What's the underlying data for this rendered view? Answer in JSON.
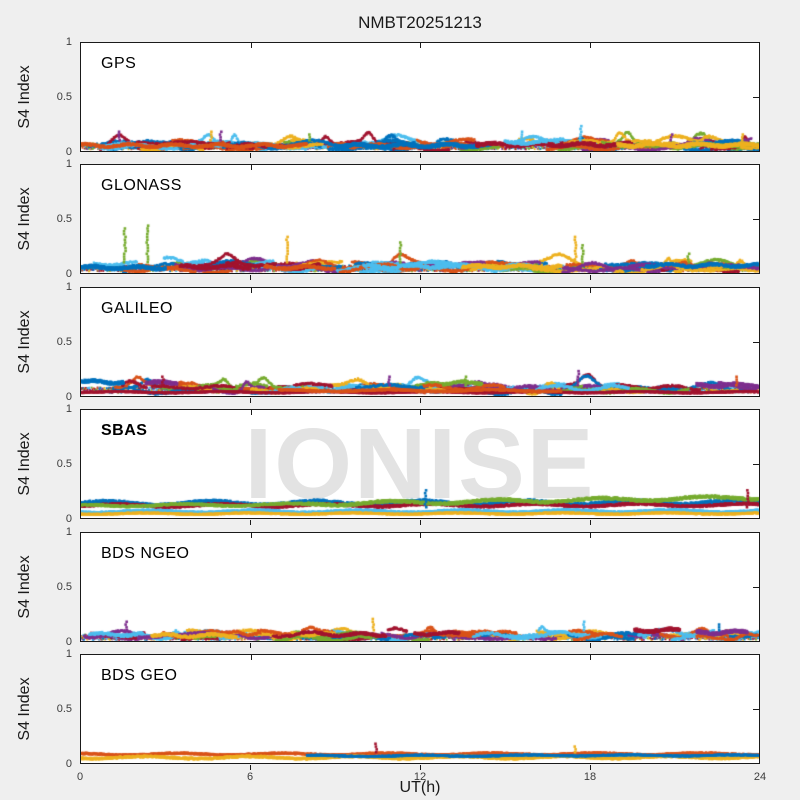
{
  "figure": {
    "bg": "#efefef",
    "panel_bg": "#ffffff",
    "axis_color": "#1a1a1a",
    "tick_label_color": "#3c3c3c",
    "text_color": "#1a1a1a"
  },
  "watermark": {
    "text": "IONISE",
    "color": "#e3e3e3"
  },
  "chart_data": {
    "type": "scatter",
    "title": "NMBT20251213",
    "xlabel": "UT(h)",
    "ylabel": "S4 Index",
    "xlim": [
      0,
      24
    ],
    "ylim": [
      0,
      1
    ],
    "xticks": [
      "0",
      "6",
      "12",
      "18",
      "24"
    ],
    "xtick_values": [
      0,
      6,
      12,
      18,
      24
    ],
    "yticks": [
      "1",
      "0.5",
      "0"
    ],
    "ytick_values": [
      1,
      0.5,
      0
    ],
    "grid": false,
    "legend": "none",
    "palette": [
      "#0072BD",
      "#D95319",
      "#EDB120",
      "#7E2F8E",
      "#77AC30",
      "#4DBEEE",
      "#A2142F"
    ],
    "panels": [
      {
        "id": "gps",
        "label": "GPS",
        "bold": false,
        "style": "arcs",
        "seed": 11,
        "n_arcs": 85,
        "arc_base": [
          0.02,
          0.09
        ],
        "arc_bump": 0.1,
        "baseline": {
          "range": [
            0.015,
            0.07
          ],
          "density": 2
        },
        "bands": [
          [
            9,
            14.5,
            0.05,
            0,
            3
          ],
          [
            14,
            19.5,
            0.06,
            6,
            3
          ],
          [
            19,
            24,
            0.055,
            2,
            3
          ],
          [
            0,
            8,
            0.05,
            1,
            2.5
          ],
          [
            15,
            16.5,
            0.08,
            5,
            2.5
          ]
        ],
        "lines": [],
        "spikes": [
          [
            1.35,
            0.18,
            3
          ],
          [
            4.6,
            0.2,
            2
          ],
          [
            4.95,
            0.19,
            3
          ],
          [
            8.1,
            0.16,
            4
          ],
          [
            15.6,
            0.19,
            5
          ],
          [
            17.7,
            0.25,
            5
          ],
          [
            20.9,
            0.17,
            3
          ],
          [
            23.4,
            0.16,
            2
          ]
        ],
        "watermark": false
      },
      {
        "id": "glonass",
        "label": "GLONASS",
        "bold": false,
        "style": "arcs",
        "seed": 22,
        "n_arcs": 75,
        "arc_base": [
          0.02,
          0.09
        ],
        "arc_bump": 0.09,
        "baseline": {
          "range": [
            0.015,
            0.07
          ],
          "density": 2
        },
        "bands": [
          [
            0,
            3,
            0.05,
            0,
            3
          ],
          [
            3.5,
            6,
            0.055,
            6,
            2.5
          ],
          [
            6.5,
            9,
            0.05,
            1,
            2.5
          ],
          [
            10,
            13,
            0.06,
            5,
            2.5
          ],
          [
            13.5,
            17,
            0.06,
            2,
            2.5
          ],
          [
            20,
            24,
            0.07,
            0,
            2.5
          ]
        ],
        "lines": [],
        "spikes": [
          [
            1.55,
            0.42,
            4
          ],
          [
            2.35,
            0.46,
            4
          ],
          [
            7.3,
            0.36,
            2
          ],
          [
            11.3,
            0.3,
            4
          ],
          [
            17.5,
            0.34,
            2
          ],
          [
            17.75,
            0.27,
            4
          ],
          [
            21.5,
            0.2,
            4
          ]
        ],
        "watermark": false
      },
      {
        "id": "galileo",
        "label": "GALILEO",
        "bold": false,
        "style": "arcs",
        "seed": 33,
        "n_arcs": 70,
        "arc_base": [
          0.04,
          0.1
        ],
        "arc_bump": 0.09,
        "baseline": {
          "range": [
            0.03,
            0.08
          ],
          "density": 2
        },
        "bands": [
          [
            0,
            1.5,
            0.13,
            0,
            3
          ],
          [
            2.3,
            3.4,
            0.12,
            3,
            3
          ],
          [
            12.8,
            14.2,
            0.12,
            4,
            2.5
          ],
          [
            21.8,
            24,
            0.1,
            3,
            3
          ]
        ],
        "lines": [
          [
            0,
            24,
            0.035,
            0.035,
            6,
            0.006
          ],
          [
            7,
            17,
            0.05,
            0.05,
            1,
            0.008
          ]
        ],
        "spikes": [
          [
            2.9,
            0.2,
            6
          ],
          [
            10.9,
            0.2,
            3
          ],
          [
            13.6,
            0.19,
            4
          ],
          [
            17.6,
            0.24,
            3
          ],
          [
            23.2,
            0.18,
            1
          ]
        ],
        "watermark": false
      },
      {
        "id": "sbas",
        "label": "SBAS",
        "bold": true,
        "style": "lines",
        "seed": 44,
        "bands": [],
        "lines": [
          [
            0,
            24,
            0.135,
            0.145,
            0,
            0.018
          ],
          [
            0,
            24,
            0.115,
            0.12,
            6,
            0.012
          ],
          [
            8,
            24,
            0.13,
            0.19,
            4,
            0.015
          ],
          [
            0,
            8.2,
            0.115,
            0.125,
            4,
            0.01
          ],
          [
            0,
            24,
            0.06,
            0.065,
            5,
            0.01
          ],
          [
            0,
            24,
            0.04,
            0.042,
            2,
            0.006
          ]
        ],
        "spikes": [
          [
            12.2,
            0.26,
            0
          ],
          [
            23.6,
            0.27,
            6
          ]
        ],
        "watermark": true
      },
      {
        "id": "bds-ngeo",
        "label": "BDS NGEO",
        "bold": false,
        "style": "arcs",
        "seed": 55,
        "n_arcs": 70,
        "arc_base": [
          0.02,
          0.08
        ],
        "arc_bump": 0.07,
        "baseline": {
          "range": [
            0.01,
            0.06
          ],
          "density": 2
        },
        "bands": [
          [
            0.3,
            2.2,
            0.06,
            5,
            2.5
          ],
          [
            2.5,
            5.5,
            0.05,
            2,
            2.5
          ],
          [
            8.5,
            10.8,
            0.06,
            6,
            2.5
          ],
          [
            11.8,
            13.4,
            0.07,
            6,
            2.5
          ],
          [
            19.6,
            21.2,
            0.1,
            6,
            3
          ],
          [
            21.8,
            23.6,
            0.08,
            3,
            3
          ]
        ],
        "lines": [],
        "spikes": [
          [
            1.6,
            0.19,
            3
          ],
          [
            10.35,
            0.22,
            2
          ],
          [
            17.8,
            0.2,
            5
          ],
          [
            22.6,
            0.17,
            0
          ]
        ],
        "watermark": false
      },
      {
        "id": "bds-geo",
        "label": "BDS GEO",
        "bold": false,
        "style": "lines",
        "seed": 66,
        "bands": [],
        "lines": [
          [
            0,
            24,
            0.082,
            0.085,
            1,
            0.008
          ],
          [
            0,
            24,
            0.05,
            0.052,
            2,
            0.01
          ],
          [
            8,
            16,
            0.065,
            0.068,
            0,
            0.006
          ],
          [
            16,
            24,
            0.07,
            0.07,
            0,
            0.005
          ]
        ],
        "spikes": [
          [
            10.45,
            0.2,
            6
          ],
          [
            17.5,
            0.17,
            2
          ]
        ],
        "watermark": false
      }
    ]
  }
}
